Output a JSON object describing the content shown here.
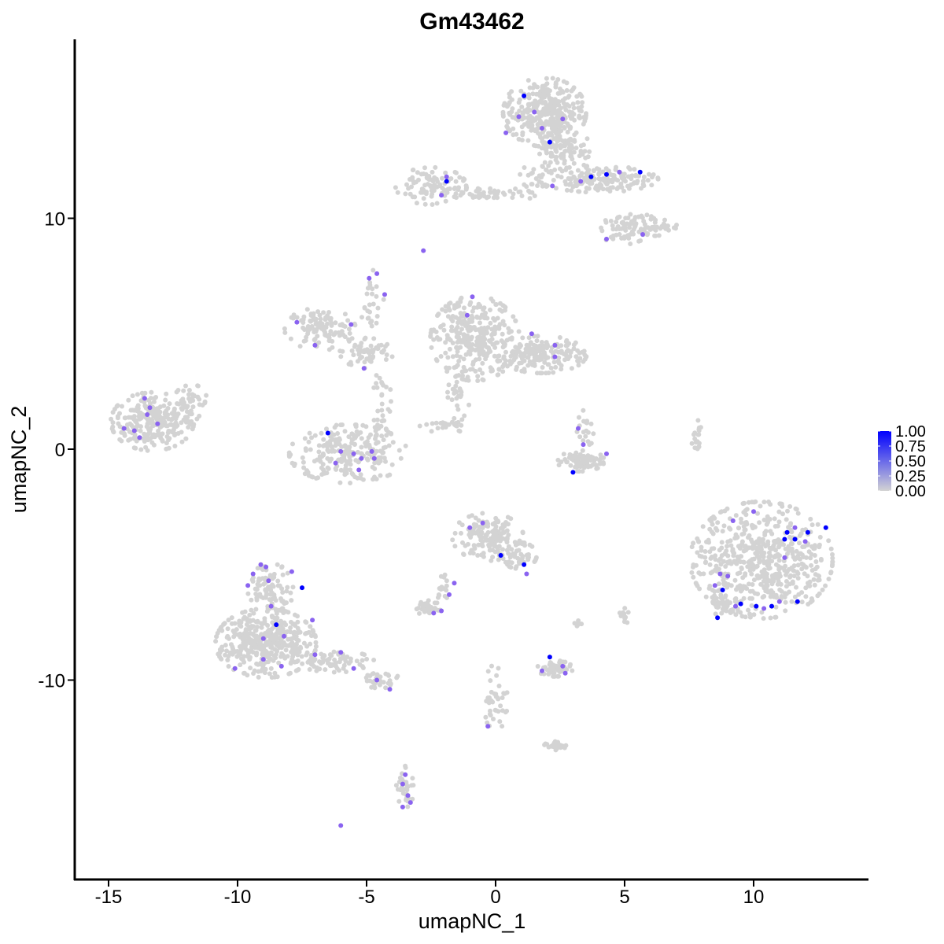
{
  "chart_data": {
    "type": "scatter",
    "title": "Gm43462",
    "xlabel": "umapNC_1",
    "ylabel": "umapNC_2",
    "xlim": [
      -16.3,
      14.2
    ],
    "ylim": [
      -18.5,
      17.8
    ],
    "x_ticks": [
      -15,
      -10,
      -5,
      0,
      5,
      10
    ],
    "x_tick_labels": [
      "-15",
      "-10",
      "-5",
      "0",
      "5",
      "10"
    ],
    "y_ticks": [
      -10,
      0,
      10
    ],
    "y_tick_labels": [
      "-10",
      "0",
      "10"
    ],
    "grid": false,
    "legend": {
      "placement": "right",
      "labels": [
        "1.00",
        "0.75",
        "0.50",
        "0.25",
        "0.00"
      ],
      "low_color": "#d3d3d3",
      "high_color": "#0000ff",
      "range": [
        0,
        1
      ]
    },
    "background_color": "#d3d3d3",
    "clusters": [
      {
        "cx": -13.3,
        "cy": 1.2,
        "rx": 1.4,
        "ry": 1.1,
        "n": 260
      },
      {
        "cx": -11.8,
        "cy": 2.0,
        "rx": 0.6,
        "ry": 0.7,
        "n": 40
      },
      {
        "cx": -5.7,
        "cy": -0.2,
        "rx": 2.0,
        "ry": 1.1,
        "n": 230
      },
      {
        "cx": -6.8,
        "cy": 5.2,
        "rx": 1.2,
        "ry": 0.8,
        "n": 110
      },
      {
        "cx": -5.0,
        "cy": 4.2,
        "rx": 0.9,
        "ry": 0.6,
        "n": 60
      },
      {
        "cx": -4.4,
        "cy": 2.0,
        "rx": 0.3,
        "ry": 1.5,
        "n": 35
      },
      {
        "cx": -4.9,
        "cy": 6.2,
        "rx": 0.5,
        "ry": 1.4,
        "n": 25
      },
      {
        "cx": -0.8,
        "cy": 4.8,
        "rx": 1.5,
        "ry": 1.6,
        "n": 320
      },
      {
        "cx": 1.8,
        "cy": 4.1,
        "rx": 1.5,
        "ry": 0.7,
        "n": 170
      },
      {
        "cx": -1.4,
        "cy": 2.5,
        "rx": 0.4,
        "ry": 1.0,
        "n": 30
      },
      {
        "cx": -1.9,
        "cy": 1.0,
        "rx": 0.9,
        "ry": 0.3,
        "n": 25
      },
      {
        "cx": -2.5,
        "cy": 11.4,
        "rx": 1.2,
        "ry": 0.7,
        "n": 90
      },
      {
        "cx": -0.5,
        "cy": 11.1,
        "rx": 1.4,
        "ry": 0.25,
        "n": 45
      },
      {
        "cx": 1.9,
        "cy": 14.6,
        "rx": 1.4,
        "ry": 1.3,
        "n": 320
      },
      {
        "cx": 2.6,
        "cy": 13.0,
        "rx": 0.9,
        "ry": 1.0,
        "n": 110
      },
      {
        "cx": 4.0,
        "cy": 11.7,
        "rx": 2.0,
        "ry": 0.5,
        "n": 160
      },
      {
        "cx": 5.0,
        "cy": 9.5,
        "rx": 0.8,
        "ry": 0.6,
        "n": 60
      },
      {
        "cx": 6.1,
        "cy": 9.7,
        "rx": 0.8,
        "ry": 0.4,
        "n": 40
      },
      {
        "cx": 1.4,
        "cy": 11.5,
        "rx": 0.5,
        "ry": 0.7,
        "n": 25
      },
      {
        "cx": 3.3,
        "cy": -0.5,
        "rx": 0.8,
        "ry": 0.4,
        "n": 85
      },
      {
        "cx": 3.5,
        "cy": 0.8,
        "rx": 0.3,
        "ry": 0.8,
        "n": 20
      },
      {
        "cx": 7.8,
        "cy": 0.4,
        "rx": 0.2,
        "ry": 0.8,
        "n": 18
      },
      {
        "cx": 10.3,
        "cy": -4.8,
        "rx": 2.4,
        "ry": 2.2,
        "n": 560
      },
      {
        "cx": 9.0,
        "cy": -6.8,
        "rx": 0.6,
        "ry": 0.4,
        "n": 40
      },
      {
        "cx": -0.3,
        "cy": -3.8,
        "rx": 1.2,
        "ry": 0.9,
        "n": 150
      },
      {
        "cx": 0.9,
        "cy": -4.6,
        "rx": 0.6,
        "ry": 0.5,
        "n": 45
      },
      {
        "cx": -2.6,
        "cy": -6.9,
        "rx": 0.4,
        "ry": 0.3,
        "n": 35
      },
      {
        "cx": -2.0,
        "cy": -6.0,
        "rx": 0.25,
        "ry": 0.6,
        "n": 15
      },
      {
        "cx": 2.3,
        "cy": -9.5,
        "rx": 0.6,
        "ry": 0.3,
        "n": 55
      },
      {
        "cx": -8.9,
        "cy": -8.4,
        "rx": 1.7,
        "ry": 1.3,
        "n": 420
      },
      {
        "cx": -8.7,
        "cy": -6.0,
        "rx": 0.8,
        "ry": 0.9,
        "n": 90
      },
      {
        "cx": -6.2,
        "cy": -9.2,
        "rx": 1.3,
        "ry": 0.4,
        "n": 70
      },
      {
        "cx": -4.5,
        "cy": -10.0,
        "rx": 0.7,
        "ry": 0.3,
        "n": 30
      },
      {
        "cx": -3.5,
        "cy": -14.6,
        "rx": 0.3,
        "ry": 0.8,
        "n": 35
      },
      {
        "cx": 0.0,
        "cy": -10.8,
        "rx": 0.4,
        "ry": 1.3,
        "n": 40
      },
      {
        "cx": 2.3,
        "cy": -12.8,
        "rx": 0.4,
        "ry": 0.2,
        "n": 25
      },
      {
        "cx": 5.0,
        "cy": -7.2,
        "rx": 0.2,
        "ry": 0.3,
        "n": 12
      },
      {
        "cx": 3.2,
        "cy": -7.6,
        "rx": 0.2,
        "ry": 0.2,
        "n": 6
      }
    ],
    "expressed_points": [
      {
        "x": 1.1,
        "y": 15.3,
        "v": 1.0
      },
      {
        "x": 2.1,
        "y": 13.3,
        "v": 1.0
      },
      {
        "x": 0.9,
        "y": 14.4,
        "v": 0.6
      },
      {
        "x": 1.5,
        "y": 14.6,
        "v": 0.6
      },
      {
        "x": 0.4,
        "y": 13.7,
        "v": 0.6
      },
      {
        "x": 2.6,
        "y": 14.3,
        "v": 0.6
      },
      {
        "x": 1.8,
        "y": 13.9,
        "v": 0.6
      },
      {
        "x": 3.7,
        "y": 11.8,
        "v": 1.0
      },
      {
        "x": 4.3,
        "y": 11.9,
        "v": 1.0
      },
      {
        "x": 5.6,
        "y": 12.0,
        "v": 1.0
      },
      {
        "x": 3.3,
        "y": 11.6,
        "v": 0.6
      },
      {
        "x": 4.8,
        "y": 12.0,
        "v": 0.6
      },
      {
        "x": 2.2,
        "y": 11.4,
        "v": 0.6
      },
      {
        "x": 5.7,
        "y": 9.3,
        "v": 0.6
      },
      {
        "x": 4.3,
        "y": 9.1,
        "v": 0.6
      },
      {
        "x": -1.9,
        "y": 11.6,
        "v": 1.0
      },
      {
        "x": -1.9,
        "y": 11.8,
        "v": 0.6
      },
      {
        "x": -2.1,
        "y": 11.0,
        "v": 0.6
      },
      {
        "x": -2.8,
        "y": 8.6,
        "v": 0.6
      },
      {
        "x": -4.6,
        "y": 7.6,
        "v": 0.6
      },
      {
        "x": -4.9,
        "y": 7.4,
        "v": 0.6
      },
      {
        "x": -4.3,
        "y": 6.7,
        "v": 0.6
      },
      {
        "x": -7.7,
        "y": 5.5,
        "v": 0.6
      },
      {
        "x": -7.0,
        "y": 4.5,
        "v": 0.6
      },
      {
        "x": -5.6,
        "y": 5.4,
        "v": 0.6
      },
      {
        "x": -5.1,
        "y": 3.5,
        "v": 0.6
      },
      {
        "x": -0.9,
        "y": 6.6,
        "v": 0.6
      },
      {
        "x": -1.1,
        "y": 5.8,
        "v": 0.6
      },
      {
        "x": 1.4,
        "y": 5.0,
        "v": 0.6
      },
      {
        "x": 2.3,
        "y": 4.5,
        "v": 0.6
      },
      {
        "x": 2.3,
        "y": 4.0,
        "v": 0.6
      },
      {
        "x": -13.6,
        "y": 2.2,
        "v": 0.6
      },
      {
        "x": -13.4,
        "y": 1.8,
        "v": 0.6
      },
      {
        "x": -13.5,
        "y": 1.5,
        "v": 0.6
      },
      {
        "x": -13.1,
        "y": 1.1,
        "v": 0.6
      },
      {
        "x": -14.4,
        "y": 0.9,
        "v": 0.6
      },
      {
        "x": -13.8,
        "y": 0.5,
        "v": 0.6
      },
      {
        "x": -14.0,
        "y": 0.8,
        "v": 0.6
      },
      {
        "x": -6.5,
        "y": 0.7,
        "v": 1.0
      },
      {
        "x": -6.2,
        "y": -0.6,
        "v": 0.6
      },
      {
        "x": -5.5,
        "y": -0.2,
        "v": 0.6
      },
      {
        "x": -5.2,
        "y": -0.4,
        "v": 0.6
      },
      {
        "x": -4.7,
        "y": -0.4,
        "v": 0.6
      },
      {
        "x": -5.3,
        "y": -0.9,
        "v": 0.6
      },
      {
        "x": -6.0,
        "y": -0.1,
        "v": 0.6
      },
      {
        "x": -4.8,
        "y": -0.1,
        "v": 0.6
      },
      {
        "x": 3.0,
        "y": -1.0,
        "v": 1.0
      },
      {
        "x": 3.2,
        "y": 0.9,
        "v": 0.6
      },
      {
        "x": 3.4,
        "y": 0.2,
        "v": 0.6
      },
      {
        "x": 4.3,
        "y": -0.2,
        "v": 0.6
      },
      {
        "x": 0.2,
        "y": -4.6,
        "v": 1.0
      },
      {
        "x": 1.1,
        "y": -5.0,
        "v": 1.0
      },
      {
        "x": -0.5,
        "y": -3.2,
        "v": 0.6
      },
      {
        "x": -1.0,
        "y": -3.4,
        "v": 0.6
      },
      {
        "x": 1.2,
        "y": -5.4,
        "v": 0.6
      },
      {
        "x": -1.6,
        "y": -5.8,
        "v": 0.6
      },
      {
        "x": -1.8,
        "y": -6.3,
        "v": 0.6
      },
      {
        "x": -2.1,
        "y": -7.0,
        "v": 0.6
      },
      {
        "x": -2.4,
        "y": -7.1,
        "v": 0.6
      },
      {
        "x": 2.1,
        "y": -9.0,
        "v": 1.0
      },
      {
        "x": 1.8,
        "y": -9.6,
        "v": 0.6
      },
      {
        "x": 2.6,
        "y": -9.4,
        "v": 0.6
      },
      {
        "x": 2.7,
        "y": -9.7,
        "v": 0.6
      },
      {
        "x": -7.5,
        "y": -6.0,
        "v": 1.0
      },
      {
        "x": -8.5,
        "y": -7.6,
        "v": 1.0
      },
      {
        "x": -9.1,
        "y": -5.0,
        "v": 0.6
      },
      {
        "x": -8.9,
        "y": -5.1,
        "v": 0.6
      },
      {
        "x": -9.4,
        "y": -5.4,
        "v": 0.6
      },
      {
        "x": -8.8,
        "y": -5.7,
        "v": 0.6
      },
      {
        "x": -9.6,
        "y": -5.9,
        "v": 0.6
      },
      {
        "x": -7.9,
        "y": -5.3,
        "v": 0.6
      },
      {
        "x": -8.7,
        "y": -6.8,
        "v": 0.6
      },
      {
        "x": -7.1,
        "y": -7.4,
        "v": 0.6
      },
      {
        "x": -8.2,
        "y": -8.1,
        "v": 0.6
      },
      {
        "x": -9.0,
        "y": -8.2,
        "v": 0.6
      },
      {
        "x": -10.1,
        "y": -9.5,
        "v": 0.6
      },
      {
        "x": -9.0,
        "y": -9.1,
        "v": 0.6
      },
      {
        "x": -8.3,
        "y": -9.4,
        "v": 0.6
      },
      {
        "x": -7.0,
        "y": -8.9,
        "v": 0.6
      },
      {
        "x": -6.0,
        "y": -8.8,
        "v": 0.6
      },
      {
        "x": -5.5,
        "y": -9.5,
        "v": 0.6
      },
      {
        "x": -4.6,
        "y": -10.0,
        "v": 0.6
      },
      {
        "x": -4.1,
        "y": -10.4,
        "v": 0.6
      },
      {
        "x": -3.6,
        "y": -14.5,
        "v": 0.6
      },
      {
        "x": -3.4,
        "y": -15.0,
        "v": 0.6
      },
      {
        "x": -3.6,
        "y": -15.5,
        "v": 0.6
      },
      {
        "x": -3.3,
        "y": -15.3,
        "v": 0.6
      },
      {
        "x": -3.5,
        "y": -14.1,
        "v": 0.6
      },
      {
        "x": -6.0,
        "y": -16.3,
        "v": 0.6
      },
      {
        "x": -0.3,
        "y": -12.0,
        "v": 0.6
      },
      {
        "x": 11.3,
        "y": -3.6,
        "v": 1.0
      },
      {
        "x": 11.6,
        "y": -3.9,
        "v": 1.0
      },
      {
        "x": 12.1,
        "y": -3.6,
        "v": 1.0
      },
      {
        "x": 11.2,
        "y": -3.9,
        "v": 1.0
      },
      {
        "x": 12.8,
        "y": -3.4,
        "v": 1.0
      },
      {
        "x": 8.8,
        "y": -6.1,
        "v": 1.0
      },
      {
        "x": 9.5,
        "y": -6.7,
        "v": 1.0
      },
      {
        "x": 10.1,
        "y": -6.8,
        "v": 1.0
      },
      {
        "x": 10.7,
        "y": -6.8,
        "v": 1.0
      },
      {
        "x": 11.7,
        "y": -6.6,
        "v": 1.0
      },
      {
        "x": 8.6,
        "y": -7.3,
        "v": 1.0
      },
      {
        "x": 9.2,
        "y": -3.1,
        "v": 0.6
      },
      {
        "x": 10.0,
        "y": -2.7,
        "v": 0.6
      },
      {
        "x": 11.6,
        "y": -3.4,
        "v": 0.6
      },
      {
        "x": 12.0,
        "y": -4.0,
        "v": 0.6
      },
      {
        "x": 11.2,
        "y": -4.7,
        "v": 0.6
      },
      {
        "x": 8.7,
        "y": -5.4,
        "v": 0.6
      },
      {
        "x": 9.0,
        "y": -5.5,
        "v": 0.6
      },
      {
        "x": 8.5,
        "y": -5.9,
        "v": 0.6
      },
      {
        "x": 9.3,
        "y": -6.8,
        "v": 0.6
      },
      {
        "x": 10.4,
        "y": -6.9,
        "v": 0.6
      },
      {
        "x": 11.0,
        "y": -6.6,
        "v": 0.6
      }
    ]
  }
}
